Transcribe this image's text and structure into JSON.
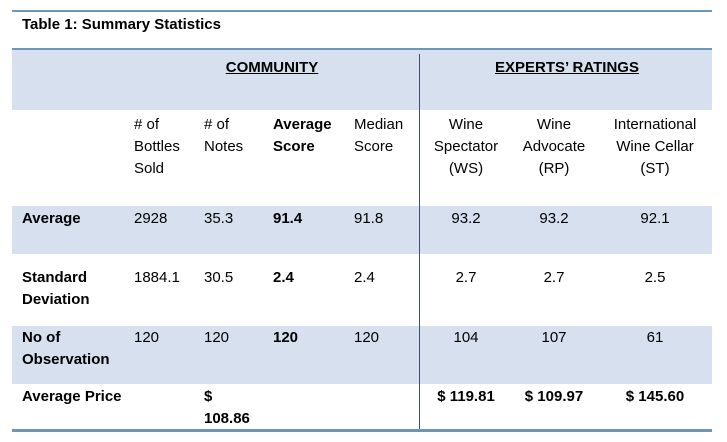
{
  "caption": "Table 1: Summary Statistics",
  "groups": {
    "community": "COMMUNITY",
    "experts": "EXPERTS’ RATINGS"
  },
  "headers": {
    "bottles": "# of\nBottles\nSold",
    "notes": "# of\nNotes",
    "avg_score": "Average\nScore",
    "median_score": "Median\nScore",
    "ws": "Wine\nSpectator\n(WS)",
    "rp": "Wine\nAdvocate\n(RP)",
    "st": "International\nWine Cellar\n(ST)"
  },
  "rows": [
    {
      "label": "Average",
      "values": [
        "2928",
        "35.3",
        "91.4",
        "91.8",
        "93.2",
        "93.2",
        "92.1"
      ]
    },
    {
      "label": "Standard\nDeviation",
      "values": [
        "1884.1",
        "30.5",
        "2.4",
        "2.4",
        "2.7",
        "2.7",
        "2.5"
      ]
    },
    {
      "label": "No of\nObservation",
      "values": [
        "120",
        "120",
        "120",
        "120",
        "104",
        "107",
        "61"
      ]
    },
    {
      "label": "Average Price",
      "values": [
        "",
        "$\n108.86",
        "",
        "",
        "$ 119.81",
        "$ 109.97",
        "$ 145.60"
      ]
    }
  ],
  "colors": {
    "band": "#d6e0ef",
    "rule": "#6f95b9",
    "divider": "#3e4f66"
  }
}
